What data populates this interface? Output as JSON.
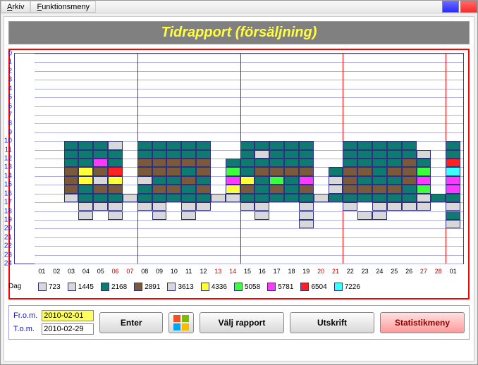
{
  "menu": {
    "arkiv": "Arkiv",
    "funktionsmeny": "Funktionsmeny"
  },
  "title": "Tidrapport (försäljning)",
  "dates": {
    "from_label": "Fr.o.m.",
    "to_label": "T.o.m.",
    "from_value": "2010-02-01",
    "to_value": "2010-02-29"
  },
  "buttons": {
    "enter": "Enter",
    "valj_rapport": "Välj rapport",
    "utskrift": "Utskrift",
    "statistikmeny": "Statistikmeny"
  },
  "chart": {
    "type": "heatmap",
    "y_ticks": [
      0,
      1,
      2,
      3,
      4,
      5,
      6,
      7,
      8,
      9,
      10,
      11,
      12,
      13,
      14,
      15,
      16,
      17,
      18,
      19,
      20,
      21,
      22,
      23,
      24
    ],
    "x_days": [
      "01",
      "02",
      "03",
      "04",
      "05",
      "06",
      "07",
      "08",
      "09",
      "10",
      "11",
      "12",
      "13",
      "14",
      "15",
      "16",
      "17",
      "18",
      "19",
      "20",
      "21",
      "22",
      "23",
      "24",
      "25",
      "26",
      "27",
      "28",
      "01"
    ],
    "x_red_indices": [
      5,
      6,
      12,
      13,
      19,
      20,
      26,
      27
    ],
    "x_axis_label": "Dag",
    "vlines_after_day_index": [
      6,
      13,
      20,
      27
    ],
    "cell_border_color": "#303080",
    "grid_color": "#b0b0e0",
    "background": "#ffffff",
    "row_start": 10,
    "row_end": 19,
    "legend": [
      {
        "label": "723",
        "color": "#d8d8d8"
      },
      {
        "label": "1445",
        "color": "#d8d8d8"
      },
      {
        "label": "2168",
        "color": "#0f7a70"
      },
      {
        "label": "2891",
        "color": "#7a5a3a"
      },
      {
        "label": "3613",
        "color": "#d8d8d8"
      },
      {
        "label": "4336",
        "color": "#ffff3a"
      },
      {
        "label": "5058",
        "color": "#3aff3a"
      },
      {
        "label": "5781",
        "color": "#ff3aff"
      },
      {
        "label": "6504",
        "color": "#ff2020"
      },
      {
        "label": "7226",
        "color": "#3affff"
      }
    ],
    "palette": {
      "g": "#d8d8d8",
      "t": "#0f7a70",
      "b": "#7a5a3a",
      "y": "#ffff3a",
      "l": "#3aff3a",
      "m": "#ff3aff",
      "r": "#ff2020",
      "c": "#3affff",
      ".": null
    },
    "grid_rows": [
      "..tttg.ttttt..ttttt..ttttt..t",
      "..tttt.ttttt..tgttt..tttttg.t",
      "..ttmt.bbbbb.tttttt..ttttbt.r",
      "..bybr.bbbtb.ltbbbb.tbbtbbl.c",
      "..bygy.gttbt.mytltm.gbtttbm.m",
      "..btbb.tbbtb.ybtbtb.gbbbbtl.m",
      "..gtttgtttttggtttttgttttttgtt",
      "...ggg.gg.gg..gg..g..g.gggg.g",
      "...g.g..g.g....g..g...gg....t",
      "..................g.........g"
    ]
  }
}
